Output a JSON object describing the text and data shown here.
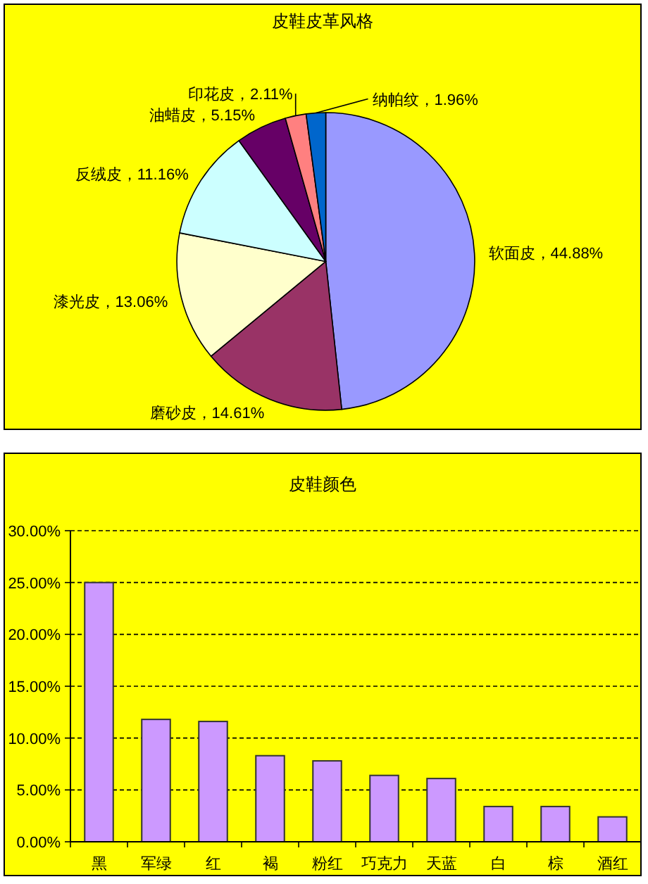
{
  "chart_data": [
    {
      "type": "pie",
      "title": "皮鞋皮革风格",
      "categories": [
        "软面皮",
        "磨砂皮",
        "漆光皮",
        "反绒皮",
        "油蜡皮",
        "印花皮",
        "纳帕纹"
      ],
      "values": [
        44.88,
        14.61,
        13.06,
        11.16,
        5.15,
        2.11,
        1.96
      ],
      "colors": [
        "#9999ff",
        "#993366",
        "#ffffcc",
        "#ccffff",
        "#660066",
        "#ff8080",
        "#0066cc"
      ],
      "value_labels": [
        "，44.88%",
        "，14.61%",
        "，13.06%",
        "，11.16%",
        "，5.15%",
        "，2.11%",
        "，1.96%"
      ]
    },
    {
      "type": "bar",
      "title": "皮鞋颜色",
      "categories": [
        "黑",
        "军绿",
        "红",
        "褐",
        "粉红",
        "巧克力",
        "天蓝",
        "白",
        "棕",
        "酒红"
      ],
      "values": [
        25.0,
        11.8,
        11.6,
        8.3,
        7.8,
        6.4,
        6.1,
        3.4,
        3.4,
        2.4
      ],
      "color": "#cc99ff",
      "ylim": [
        0,
        30
      ],
      "yticks": [
        {
          "value": 0,
          "label": "0.00%"
        },
        {
          "value": 5,
          "label": "5.00%"
        },
        {
          "value": 10,
          "label": "10.00%"
        },
        {
          "value": 15,
          "label": "15.00%"
        },
        {
          "value": 20,
          "label": "20.00%"
        },
        {
          "value": 25,
          "label": "25.00%"
        },
        {
          "value": 30,
          "label": "30.00%"
        }
      ],
      "grid": "y"
    }
  ]
}
